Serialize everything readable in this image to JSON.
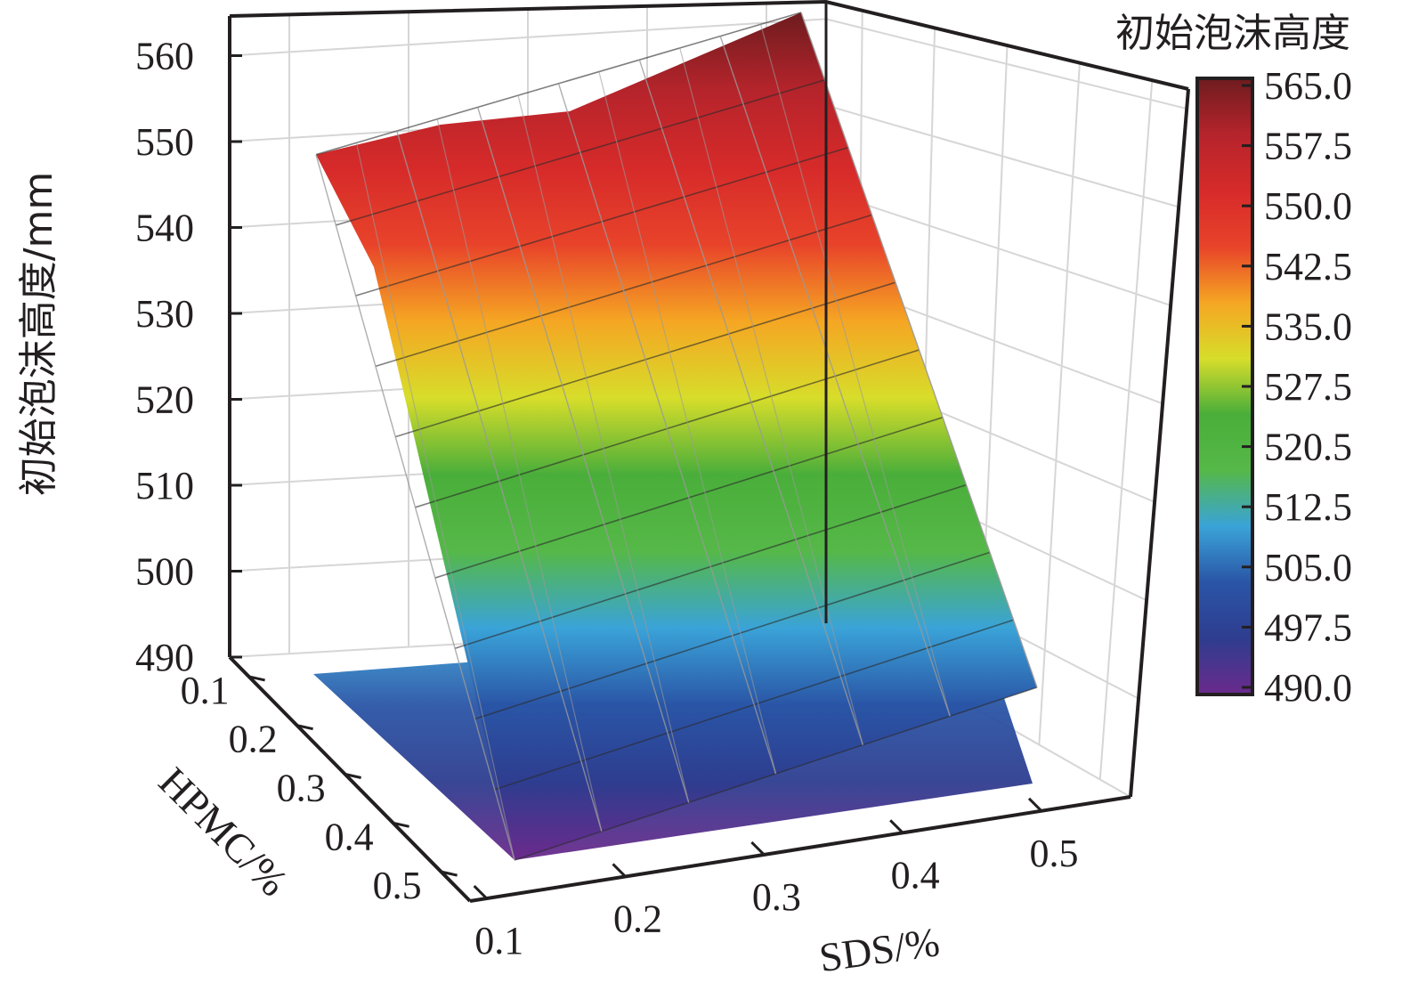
{
  "chart_data": {
    "type": "surface3d",
    "zlabel": "初始泡沫高度/mm",
    "xlabel": "SDS/%",
    "ylabel": "HPMC/%",
    "colorbar_title": "初始泡沫高度",
    "x_ticks": [
      "0.1",
      "0.2",
      "0.3",
      "0.4",
      "0.5"
    ],
    "y_ticks": [
      "0.1",
      "0.2",
      "0.3",
      "0.4",
      "0.5"
    ],
    "z_ticks": [
      "490",
      "500",
      "510",
      "520",
      "530",
      "540",
      "550",
      "560"
    ],
    "zlim": [
      490,
      565
    ],
    "colorbar_ticks": [
      "565.0",
      "557.5",
      "550.0",
      "542.5",
      "535.0",
      "527.5",
      "520.5",
      "512.5",
      "505.0",
      "497.5",
      "490.0"
    ],
    "x": [
      0.1,
      0.2,
      0.3,
      0.4,
      0.5
    ],
    "y": [
      0.1,
      0.2,
      0.3,
      0.4,
      0.5
    ],
    "z_corners": {
      "sds_0.1_hpmc_0.1": 549,
      "sds_0.5_hpmc_0.1": 565,
      "sds_0.1_hpmc_0.5": 491,
      "sds_0.5_hpmc_0.5": 503
    },
    "colormap": [
      "#6b2a8c",
      "#2e3d8f",
      "#2a55a6",
      "#3aa3d8",
      "#55b848",
      "#4aae3a",
      "#d7dd2a",
      "#f5a623",
      "#e8432a",
      "#d62a2a",
      "#b5242b",
      "#6e1c1f"
    ],
    "grid": true
  }
}
